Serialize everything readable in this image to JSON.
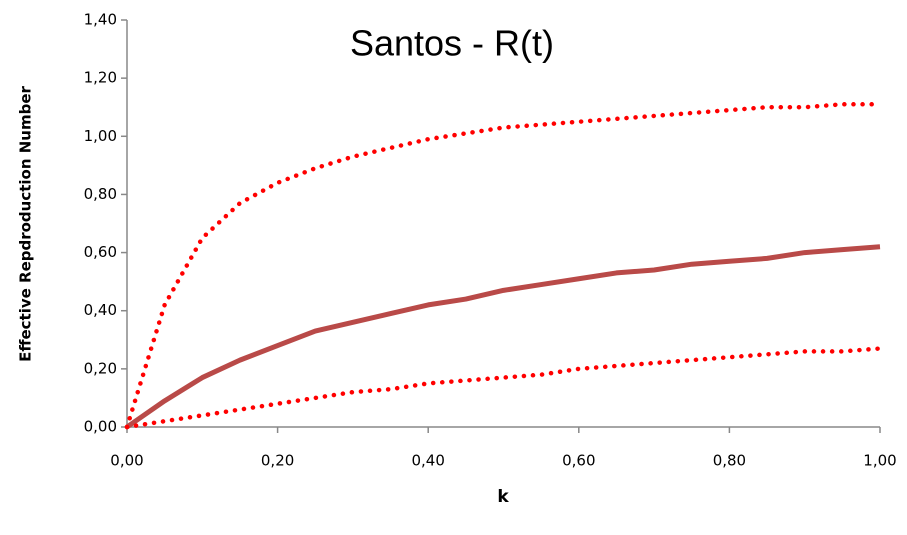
{
  "chart_data": {
    "type": "line",
    "title": "Santos - R(t)",
    "x_label": "k",
    "y_label": "Effective Repdroduction Number",
    "x": [
      0,
      0.05,
      0.1,
      0.15,
      0.2,
      0.25,
      0.3,
      0.35,
      0.4,
      0.45,
      0.5,
      0.55,
      0.6,
      0.65,
      0.7,
      0.75,
      0.8,
      0.85,
      0.9,
      0.95,
      1.0
    ],
    "series": [
      {
        "color": "#ff0000",
        "style": "dotted",
        "values": [
          0,
          0.42,
          0.65,
          0.77,
          0.84,
          0.89,
          0.93,
          0.96,
          0.99,
          1.01,
          1.03,
          1.04,
          1.05,
          1.06,
          1.07,
          1.08,
          1.09,
          1.1,
          1.1,
          1.11,
          1.11
        ]
      },
      {
        "color": "#b94a48",
        "style": "solid",
        "values": [
          0,
          0.09,
          0.17,
          0.23,
          0.28,
          0.33,
          0.36,
          0.39,
          0.42,
          0.44,
          0.47,
          0.49,
          0.51,
          0.53,
          0.54,
          0.56,
          0.57,
          0.58,
          0.6,
          0.61,
          0.62
        ]
      },
      {
        "color": "#ff0000",
        "style": "dotted",
        "values": [
          0,
          0.02,
          0.04,
          0.06,
          0.08,
          0.1,
          0.12,
          0.13,
          0.15,
          0.16,
          0.17,
          0.18,
          0.2,
          0.21,
          0.22,
          0.23,
          0.24,
          0.25,
          0.26,
          0.26,
          0.27
        ]
      }
    ],
    "xlim": [
      0,
      1.0
    ],
    "xticks": [
      {
        "value": 0,
        "label": "0,00"
      },
      {
        "value": 0.2,
        "label": "0,20"
      },
      {
        "value": 0.4,
        "label": "0,40"
      },
      {
        "value": 0.6,
        "label": "0,60"
      },
      {
        "value": 0.8,
        "label": "0,80"
      },
      {
        "value": 1.0,
        "label": "1,00"
      }
    ],
    "ylim": [
      0,
      1.4
    ],
    "yticks": [
      {
        "value": 0,
        "label": "0,00"
      },
      {
        "value": 0.2,
        "label": "0,20"
      },
      {
        "value": 0.4,
        "label": "0,40"
      },
      {
        "value": 0.6,
        "label": "0,60"
      },
      {
        "value": 0.8,
        "label": "0,80"
      },
      {
        "value": 1.0,
        "label": "1,00"
      },
      {
        "value": 1.2,
        "label": "1,20"
      },
      {
        "value": 1.4,
        "label": "1,40"
      }
    ],
    "grid": false
  }
}
